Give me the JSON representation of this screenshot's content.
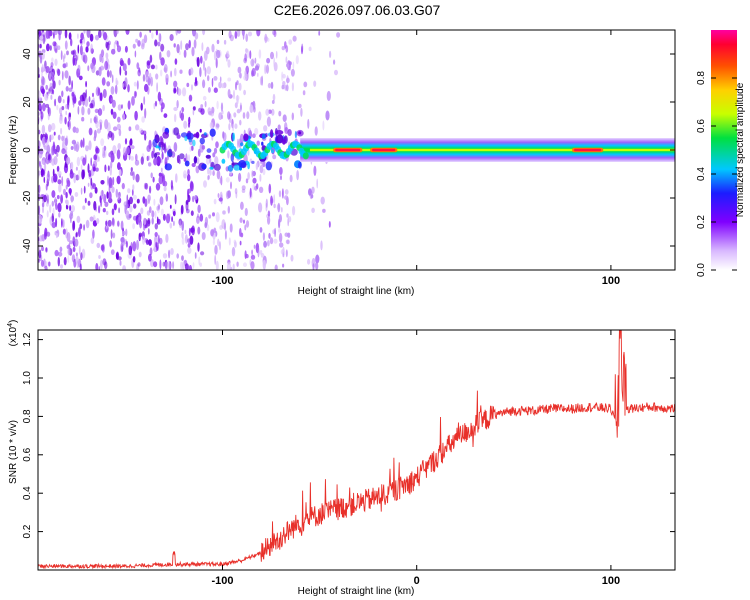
{
  "title": "C2E6.2026.097.06.03.G07",
  "colors": {
    "snr_line": "#e8302a",
    "noise_dots": "#6a00e0",
    "background": "#ffffff",
    "axes": "#000000"
  },
  "chart_data": [
    {
      "type": "heatmap",
      "title": "C2E6.2026.097.06.03.G07",
      "xlabel": "Height of straight line (km)",
      "ylabel": "Frequency (Hz)",
      "xlim": [
        -195,
        133
      ],
      "ylim": [
        -50,
        50
      ],
      "xticks": [
        -100,
        0,
        100
      ],
      "xtick_labels": [
        "-100",
        "",
        "100"
      ],
      "yticks": [
        -40,
        -20,
        0,
        20,
        40
      ],
      "ytick_labels": [
        "-40",
        "-20",
        "0",
        "20",
        "40"
      ],
      "colorbar": {
        "label": "Normalized spectral amplitude",
        "range": [
          0.0,
          1.0
        ],
        "ticks": [
          0.0,
          0.2,
          0.4,
          0.6,
          0.8
        ],
        "tick_labels": [
          "0.0",
          "0.2",
          "0.4",
          "0.6",
          "0.8"
        ],
        "colormap": "white-purple-blue-cyan-green-yellow-orange-red-magenta"
      },
      "band": {
        "center_frequency_hz": 0,
        "half_width_hz": 3,
        "start_height_km": -115,
        "end_height_km": 133,
        "peak_segments_km": [
          [
            -43,
            -28
          ],
          [
            -24,
            -10
          ],
          [
            80,
            96
          ]
        ]
      },
      "noise_region_km": [
        -195,
        -65
      ],
      "grid": false,
      "legend": "colorbar-right"
    },
    {
      "type": "line",
      "xlabel": "Height of straight line (km)",
      "ylabel": "SNR (10 * v/v)",
      "y_multiplier": "(x10^4)",
      "xlim": [
        -195,
        133
      ],
      "ylim": [
        0,
        1.25
      ],
      "xticks": [
        -100,
        0,
        100
      ],
      "xtick_labels": [
        "-100",
        "0",
        "100"
      ],
      "yticks": [
        0.2,
        0.4,
        0.6,
        0.8,
        1.0,
        1.2
      ],
      "ytick_labels": [
        "0.2",
        "0.4",
        "0.6",
        "0.8",
        "1.0",
        "1.2"
      ],
      "grid": false,
      "series": [
        {
          "x": [
            -195,
            -150,
            -125,
            -100,
            -90,
            -80,
            -70,
            -60,
            -50,
            -40,
            -30,
            -20,
            -10,
            0,
            10,
            20,
            30,
            40,
            50,
            60,
            70,
            80,
            90,
            100,
            103,
            105,
            107,
            110,
            120,
            133
          ],
          "values": [
            0.02,
            0.02,
            0.03,
            0.03,
            0.05,
            0.09,
            0.17,
            0.25,
            0.29,
            0.32,
            0.35,
            0.38,
            0.42,
            0.48,
            0.58,
            0.68,
            0.75,
            0.81,
            0.83,
            0.83,
            0.84,
            0.84,
            0.85,
            0.84,
            0.75,
            1.2,
            0.85,
            0.84,
            0.85,
            0.84
          ]
        }
      ]
    }
  ]
}
